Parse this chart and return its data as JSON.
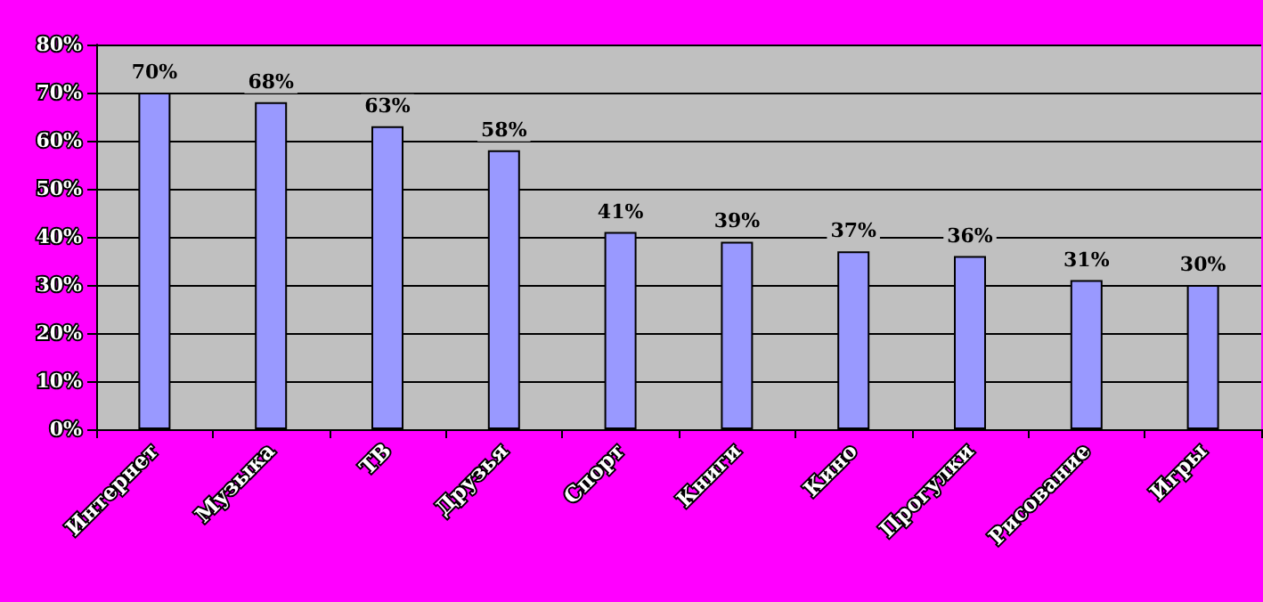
{
  "chart_data": {
    "type": "bar",
    "categories": [
      "Интернет",
      "Музыка",
      "ТВ",
      "Друзья",
      "Спорт",
      "Книги",
      "Кино",
      "Прогулки",
      "Рисование",
      "Игры"
    ],
    "values": [
      70,
      68,
      63,
      58,
      41,
      39,
      37,
      36,
      31,
      30
    ],
    "value_labels": [
      "70%",
      "68%",
      "63%",
      "58%",
      "41%",
      "39%",
      "37%",
      "36%",
      "31%",
      "30%"
    ],
    "color": "#9999ff",
    "ylim": [
      0,
      80
    ],
    "yticks": [
      {
        "value": 0,
        "label": "0%"
      },
      {
        "value": 10,
        "label": "10%"
      },
      {
        "value": 20,
        "label": "20%"
      },
      {
        "value": 30,
        "label": "30%"
      },
      {
        "value": 40,
        "label": "40%"
      },
      {
        "value": 50,
        "label": "50%"
      },
      {
        "value": 60,
        "label": "60%"
      },
      {
        "value": 70,
        "label": "70%"
      },
      {
        "value": 80,
        "label": "80%"
      }
    ],
    "grid": "y"
  }
}
